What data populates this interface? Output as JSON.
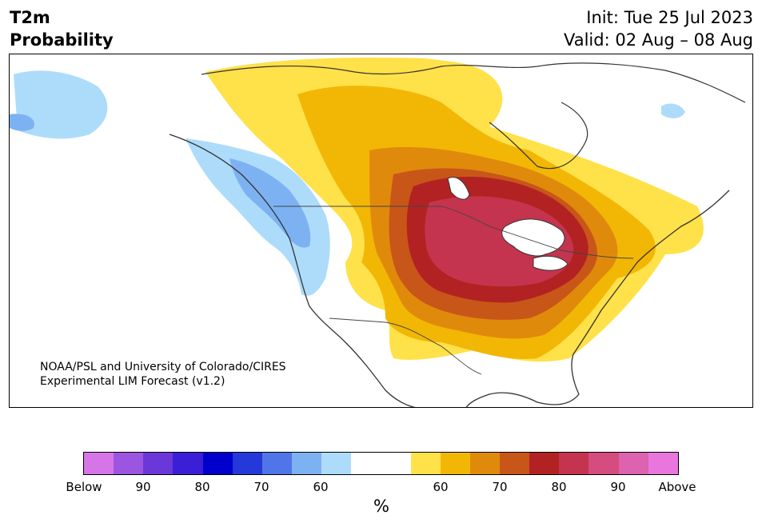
{
  "header": {
    "title_line1": "T2m",
    "title_line2": "Probability",
    "init": "Init: Tue 25 Jul 2023",
    "valid": "Valid: 02 Aug – 08 Aug"
  },
  "credit": {
    "line1": "NOAA/PSL and University of Colorado/CIRES",
    "line2": "Experimental LIM Forecast (v1.2)"
  },
  "colorbar": {
    "segments": [
      {
        "category": "below",
        "color": "#d675e8"
      },
      {
        "category": "below",
        "color": "#9b55e0"
      },
      {
        "category": "below",
        "color": "#6a37d9"
      },
      {
        "category": "below",
        "color": "#3a1fd6"
      },
      {
        "category": "below",
        "color": "#0000cc"
      },
      {
        "category": "below",
        "color": "#2538d9"
      },
      {
        "category": "below",
        "color": "#5075e8"
      },
      {
        "category": "below",
        "color": "#7db2f2"
      },
      {
        "category": "below",
        "color": "#addcfb"
      },
      {
        "category": "neutral",
        "color": "#ffffff"
      },
      {
        "category": "neutral",
        "color": "#ffffff"
      },
      {
        "category": "above",
        "color": "#ffe14a"
      },
      {
        "category": "above",
        "color": "#f2b705"
      },
      {
        "category": "above",
        "color": "#e08a0c"
      },
      {
        "category": "above",
        "color": "#c85618"
      },
      {
        "category": "above",
        "color": "#b22222"
      },
      {
        "category": "above",
        "color": "#c4344e"
      },
      {
        "category": "above",
        "color": "#d54c7e"
      },
      {
        "category": "above",
        "color": "#dd62b0"
      },
      {
        "category": "above",
        "color": "#e876dc"
      }
    ],
    "tick_labels": [
      "Below",
      "90",
      "80",
      "70",
      "60",
      "60",
      "70",
      "80",
      "90",
      "Above"
    ],
    "unit": "%"
  }
}
